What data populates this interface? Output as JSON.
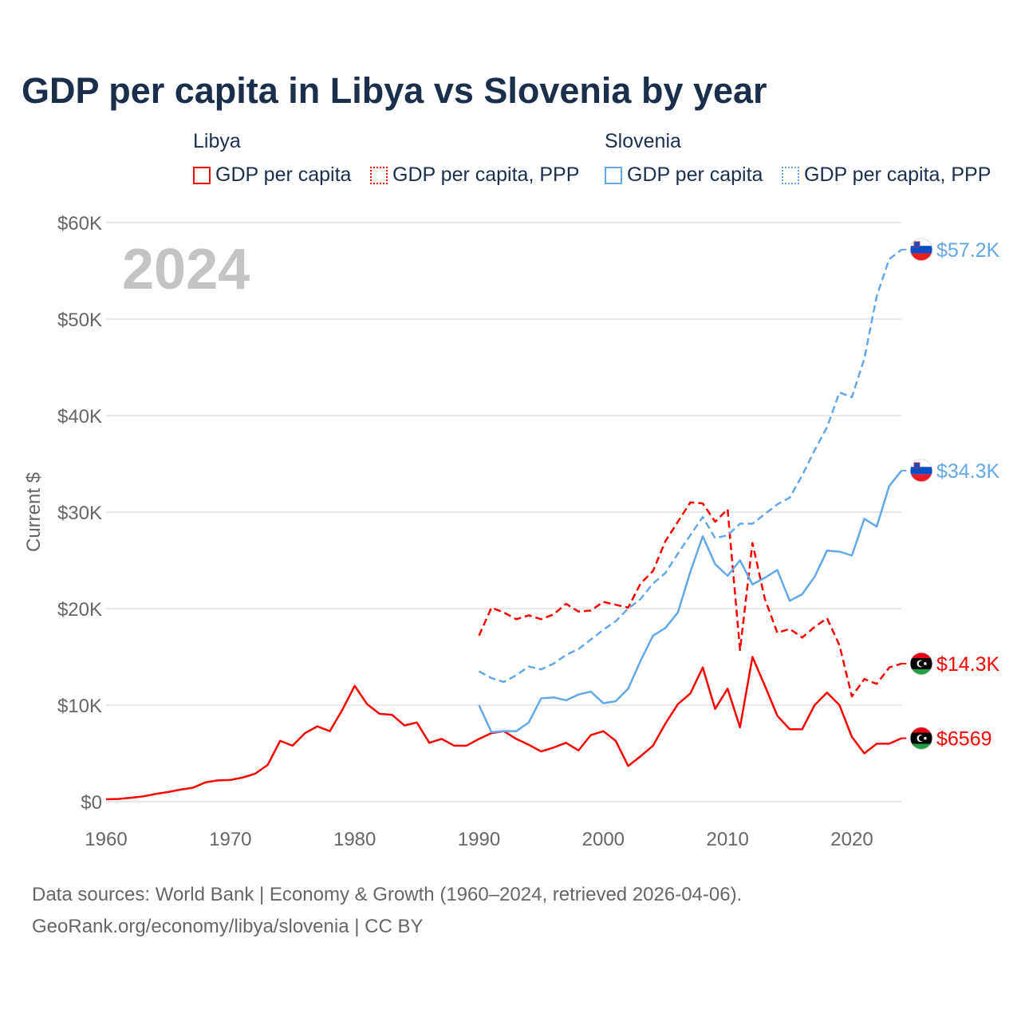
{
  "title": "GDP per capita in Libya vs Slovenia by year",
  "legend": {
    "groups": [
      {
        "name": "Libya",
        "items": [
          "GDP per capita",
          "GDP per capita, PPP"
        ]
      },
      {
        "name": "Slovenia",
        "items": [
          "GDP per capita",
          "GDP per capita, PPP"
        ]
      }
    ]
  },
  "year_overlay": "2024",
  "footer": {
    "line1": "Data sources: World Bank | Economy & Growth (1960–2024, retrieved 2026-04-06).",
    "line2": "GeoRank.org/economy/libya/slovenia | CC BY"
  },
  "colors": {
    "libya": "#ff0000",
    "slovenia": "#64a8e8"
  },
  "chart_data": {
    "type": "line",
    "title": "GDP per capita in Libya vs Slovenia by year",
    "xlabel": "",
    "ylabel": "Current $",
    "xlim": [
      1960,
      2024
    ],
    "ylim": [
      0,
      60000
    ],
    "xticks": [
      "1960",
      "1970",
      "1980",
      "1990",
      "2000",
      "2010",
      "2020"
    ],
    "yticks": [
      "$0",
      "$10K",
      "$20K",
      "$30K",
      "$40K",
      "$50K",
      "$60K"
    ],
    "grid": true,
    "series": [
      {
        "name": "Libya GDP per capita",
        "country": "libya",
        "dashed": false,
        "start": 1960,
        "end_label": "$6569",
        "values": [
          250,
          280,
          400,
          550,
          800,
          1000,
          1250,
          1450,
          2000,
          2200,
          2250,
          2500,
          2900,
          3800,
          6300,
          5800,
          7100,
          7800,
          7300,
          9500,
          12000,
          10100,
          9100,
          9000,
          7900,
          8200,
          6100,
          6500,
          5800,
          5800,
          6500,
          7100,
          7300,
          6500,
          5900,
          5200,
          5600,
          6100,
          5300,
          6900,
          7300,
          6300,
          3700,
          4700,
          5800,
          8100,
          10100,
          11200,
          13900,
          9600,
          11700,
          7700,
          15000,
          12000,
          8900,
          7500,
          7500,
          10000,
          11300,
          10000,
          6700,
          5000,
          6000,
          6000,
          6569
        ]
      },
      {
        "name": "Libya GDP per capita, PPP",
        "country": "libya",
        "dashed": true,
        "start": 1990,
        "end_label": "$14.3K",
        "values": [
          17200,
          20100,
          19600,
          18900,
          19300,
          18900,
          19400,
          20500,
          19700,
          19800,
          20700,
          20400,
          20100,
          22600,
          23900,
          27000,
          29000,
          31000,
          30900,
          29000,
          30300,
          15700,
          26800,
          21000,
          17500,
          17900,
          17000,
          18100,
          19000,
          16200,
          10900,
          12700,
          12200,
          13900,
          14300
        ]
      },
      {
        "name": "Slovenia GDP per capita",
        "country": "slovenia",
        "dashed": false,
        "start": 1990,
        "end_label": "$34.3K",
        "values": [
          10000,
          7200,
          7300,
          7300,
          8200,
          10700,
          10800,
          10500,
          11100,
          11400,
          10200,
          10400,
          11700,
          14600,
          17200,
          18000,
          19600,
          23800,
          27500,
          24600,
          23400,
          25000,
          22500,
          23200,
          24000,
          20800,
          21500,
          23300,
          26000,
          25900,
          25500,
          29300,
          28500,
          32700,
          34300
        ]
      },
      {
        "name": "Slovenia GDP per capita, PPP",
        "country": "slovenia",
        "dashed": true,
        "start": 1990,
        "end_label": "$57.2K",
        "values": [
          13500,
          12800,
          12400,
          13100,
          14000,
          13700,
          14300,
          15200,
          15800,
          16800,
          17800,
          18700,
          20000,
          21000,
          22600,
          23700,
          25700,
          27600,
          29500,
          27300,
          27600,
          28800,
          28800,
          29800,
          30800,
          31500,
          33800,
          36400,
          38800,
          42400,
          41900,
          45900,
          52400,
          56200,
          57200
        ]
      }
    ]
  }
}
